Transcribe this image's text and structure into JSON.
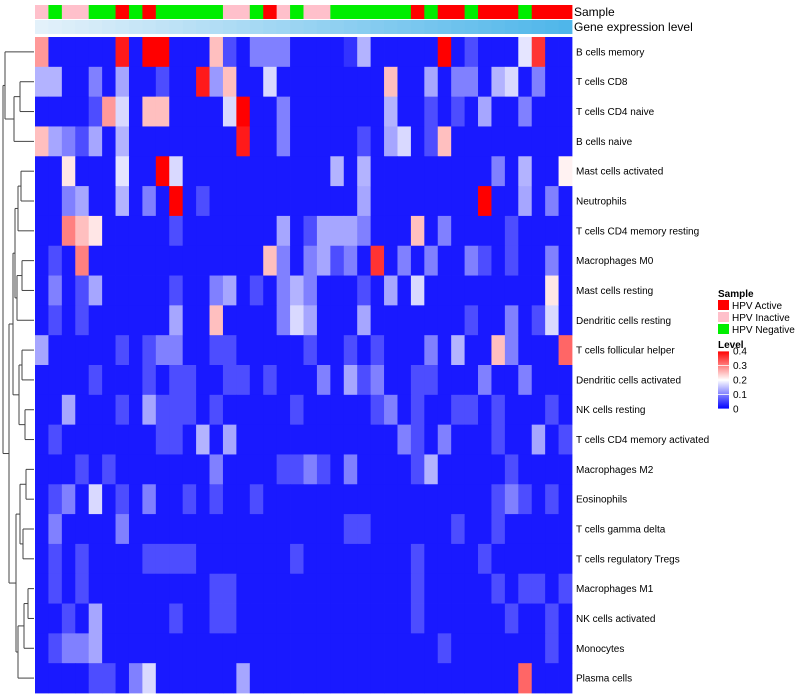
{
  "chart_data": {
    "type": "heatmap",
    "annotation_tracks": [
      "Sample",
      "Gene expression level"
    ],
    "sample_annotation": [
      "HPV Inactive",
      "HPV Negative",
      "HPV Inactive",
      "HPV Inactive",
      "HPV Negative",
      "HPV Negative",
      "HPV Active",
      "HPV Negative",
      "HPV Active",
      "HPV Negative",
      "HPV Negative",
      "HPV Negative",
      "HPV Negative",
      "HPV Negative",
      "HPV Inactive",
      "HPV Inactive",
      "HPV Negative",
      "HPV Active",
      "HPV Inactive",
      "HPV Negative",
      "HPV Inactive",
      "HPV Inactive",
      "HPV Negative",
      "HPV Negative",
      "HPV Negative",
      "HPV Negative",
      "HPV Negative",
      "HPV Negative",
      "HPV Active",
      "HPV Negative",
      "HPV Active",
      "HPV Active",
      "HPV Negative",
      "HPV Active",
      "HPV Active",
      "HPV Active",
      "HPV Negative",
      "HPV Active",
      "HPV Active",
      "HPV Active"
    ],
    "gene_expression_level_scale": [
      "#e3f1fa",
      "#4fb6ea"
    ],
    "rows": [
      "B cells memory",
      "T cells CD8",
      "T cells CD4 naive",
      "B cells naive",
      "Mast cells activated",
      "Neutrophils",
      "T cells CD4 memory resting",
      "Macrophages M0",
      "Mast cells resting",
      "Dendritic cells resting",
      "T cells follicular helper",
      "Dendritic cells activated",
      "NK cells resting",
      "T cells CD4 memory activated",
      "Macrophages M2",
      "Eosinophils",
      "T cells gamma delta",
      "T cells regulatory  Tregs",
      "Macrophages M1",
      "NK cells activated",
      "Monocytes",
      "Plasma cells"
    ],
    "values": [
      [
        0.28,
        0.02,
        0.02,
        0.02,
        0.02,
        0.02,
        0.38,
        0.02,
        0.4,
        0.4,
        0.02,
        0.02,
        0.02,
        0.25,
        0.06,
        0.02,
        0.1,
        0.1,
        0.1,
        0.02,
        0.02,
        0.02,
        0.02,
        0.04,
        0.14,
        0.02,
        0.02,
        0.02,
        0.02,
        0.02,
        0.4,
        0.02,
        0.06,
        0.02,
        0.02,
        0.02,
        0.18,
        0.36,
        0.02,
        0.02
      ],
      [
        0.14,
        0.14,
        0.02,
        0.02,
        0.1,
        0.02,
        0.13,
        0.02,
        0.02,
        0.06,
        0.02,
        0.02,
        0.38,
        0.12,
        0.25,
        0.02,
        0.02,
        0.17,
        0.02,
        0.02,
        0.02,
        0.02,
        0.02,
        0.02,
        0.02,
        0.02,
        0.25,
        0.02,
        0.02,
        0.13,
        0.02,
        0.1,
        0.1,
        0.02,
        0.14,
        0.17,
        0.02,
        0.1,
        0.02,
        0.02
      ],
      [
        0.02,
        0.02,
        0.02,
        0.02,
        0.06,
        0.28,
        0.17,
        0.02,
        0.25,
        0.25,
        0.02,
        0.02,
        0.02,
        0.02,
        0.17,
        0.4,
        0.02,
        0.02,
        0.1,
        0.02,
        0.02,
        0.02,
        0.02,
        0.02,
        0.02,
        0.02,
        0.14,
        0.02,
        0.02,
        0.06,
        0.02,
        0.06,
        0.02,
        0.13,
        0.02,
        0.02,
        0.1,
        0.02,
        0.02,
        0.02
      ],
      [
        0.25,
        0.13,
        0.1,
        0.06,
        0.13,
        0.02,
        0.14,
        0.02,
        0.02,
        0.02,
        0.02,
        0.02,
        0.02,
        0.02,
        0.02,
        0.38,
        0.02,
        0.02,
        0.1,
        0.02,
        0.02,
        0.02,
        0.02,
        0.02,
        0.06,
        0.02,
        0.13,
        0.17,
        0.02,
        0.06,
        0.25,
        0.02,
        0.02,
        0.02,
        0.02,
        0.02,
        0.02,
        0.02,
        0.02,
        0.02
      ],
      [
        0.02,
        0.02,
        0.22,
        0.02,
        0.02,
        0.02,
        0.18,
        0.02,
        0.02,
        0.4,
        0.17,
        0.02,
        0.02,
        0.02,
        0.02,
        0.02,
        0.02,
        0.02,
        0.02,
        0.02,
        0.02,
        0.02,
        0.14,
        0.02,
        0.14,
        0.02,
        0.02,
        0.02,
        0.02,
        0.02,
        0.02,
        0.02,
        0.02,
        0.02,
        0.1,
        0.02,
        0.14,
        0.02,
        0.02,
        0.21
      ],
      [
        0.02,
        0.02,
        0.1,
        0.13,
        0.02,
        0.02,
        0.14,
        0.02,
        0.1,
        0.02,
        0.4,
        0.02,
        0.06,
        0.02,
        0.02,
        0.02,
        0.02,
        0.02,
        0.02,
        0.02,
        0.02,
        0.02,
        0.02,
        0.02,
        0.13,
        0.02,
        0.02,
        0.02,
        0.02,
        0.02,
        0.02,
        0.02,
        0.02,
        0.4,
        0.02,
        0.02,
        0.13,
        0.02,
        0.1,
        0.02
      ],
      [
        0.02,
        0.02,
        0.3,
        0.25,
        0.22,
        0.02,
        0.02,
        0.02,
        0.02,
        0.02,
        0.06,
        0.02,
        0.02,
        0.02,
        0.02,
        0.02,
        0.02,
        0.02,
        0.13,
        0.02,
        0.06,
        0.13,
        0.13,
        0.13,
        0.1,
        0.02,
        0.02,
        0.02,
        0.25,
        0.02,
        0.1,
        0.02,
        0.02,
        0.02,
        0.02,
        0.06,
        0.02,
        0.02,
        0.02,
        0.02
      ],
      [
        0.02,
        0.06,
        0.02,
        0.3,
        0.02,
        0.02,
        0.02,
        0.02,
        0.02,
        0.02,
        0.02,
        0.02,
        0.02,
        0.02,
        0.02,
        0.02,
        0.02,
        0.25,
        0.1,
        0.02,
        0.1,
        0.13,
        0.06,
        0.1,
        0.02,
        0.36,
        0.02,
        0.1,
        0.02,
        0.1,
        0.02,
        0.02,
        0.1,
        0.06,
        0.02,
        0.06,
        0.02,
        0.02,
        0.1,
        0.02
      ],
      [
        0.02,
        0.1,
        0.02,
        0.06,
        0.13,
        0.02,
        0.02,
        0.02,
        0.02,
        0.02,
        0.06,
        0.02,
        0.02,
        0.1,
        0.13,
        0.02,
        0.06,
        0.02,
        0.1,
        0.14,
        0.1,
        0.02,
        0.02,
        0.02,
        0.06,
        0.02,
        0.13,
        0.02,
        0.17,
        0.02,
        0.02,
        0.02,
        0.02,
        0.02,
        0.02,
        0.02,
        0.02,
        0.02,
        0.22,
        0.02
      ],
      [
        0.02,
        0.06,
        0.02,
        0.06,
        0.02,
        0.02,
        0.02,
        0.02,
        0.02,
        0.02,
        0.13,
        0.02,
        0.02,
        0.25,
        0.02,
        0.02,
        0.02,
        0.02,
        0.1,
        0.17,
        0.13,
        0.02,
        0.02,
        0.02,
        0.13,
        0.02,
        0.02,
        0.02,
        0.02,
        0.02,
        0.02,
        0.02,
        0.06,
        0.02,
        0.02,
        0.1,
        0.02,
        0.06,
        0.17,
        0.02
      ],
      [
        0.13,
        0.02,
        0.02,
        0.02,
        0.02,
        0.02,
        0.06,
        0.02,
        0.06,
        0.1,
        0.1,
        0.02,
        0.02,
        0.06,
        0.06,
        0.02,
        0.02,
        0.02,
        0.02,
        0.02,
        0.06,
        0.02,
        0.02,
        0.06,
        0.02,
        0.06,
        0.02,
        0.02,
        0.02,
        0.1,
        0.02,
        0.14,
        0.02,
        0.02,
        0.25,
        0.1,
        0.02,
        0.02,
        0.02,
        0.32
      ],
      [
        0.02,
        0.02,
        0.02,
        0.02,
        0.06,
        0.02,
        0.02,
        0.02,
        0.06,
        0.02,
        0.06,
        0.06,
        0.02,
        0.02,
        0.06,
        0.06,
        0.02,
        0.06,
        0.02,
        0.02,
        0.02,
        0.1,
        0.02,
        0.13,
        0.06,
        0.1,
        0.02,
        0.02,
        0.06,
        0.06,
        0.02,
        0.02,
        0.02,
        0.1,
        0.02,
        0.02,
        0.1,
        0.02,
        0.02,
        0.02
      ],
      [
        0.02,
        0.02,
        0.13,
        0.02,
        0.02,
        0.02,
        0.06,
        0.02,
        0.13,
        0.06,
        0.06,
        0.06,
        0.02,
        0.06,
        0.02,
        0.02,
        0.02,
        0.02,
        0.02,
        0.06,
        0.02,
        0.02,
        0.02,
        0.02,
        0.02,
        0.06,
        0.1,
        0.02,
        0.06,
        0.02,
        0.02,
        0.06,
        0.06,
        0.02,
        0.06,
        0.02,
        0.02,
        0.02,
        0.06,
        0.02
      ],
      [
        0.02,
        0.06,
        0.02,
        0.02,
        0.02,
        0.02,
        0.02,
        0.02,
        0.02,
        0.06,
        0.06,
        0.02,
        0.14,
        0.02,
        0.13,
        0.02,
        0.02,
        0.02,
        0.02,
        0.02,
        0.02,
        0.02,
        0.02,
        0.02,
        0.02,
        0.02,
        0.02,
        0.1,
        0.06,
        0.02,
        0.1,
        0.02,
        0.02,
        0.02,
        0.06,
        0.02,
        0.02,
        0.13,
        0.02,
        0.06
      ],
      [
        0.02,
        0.02,
        0.02,
        0.06,
        0.02,
        0.06,
        0.02,
        0.02,
        0.02,
        0.02,
        0.02,
        0.02,
        0.02,
        0.1,
        0.02,
        0.02,
        0.02,
        0.02,
        0.06,
        0.06,
        0.1,
        0.06,
        0.02,
        0.1,
        0.02,
        0.02,
        0.02,
        0.02,
        0.06,
        0.14,
        0.02,
        0.02,
        0.02,
        0.02,
        0.02,
        0.06,
        0.02,
        0.02,
        0.02,
        0.02
      ],
      [
        0.02,
        0.06,
        0.1,
        0.02,
        0.17,
        0.02,
        0.06,
        0.02,
        0.1,
        0.02,
        0.02,
        0.06,
        0.02,
        0.06,
        0.02,
        0.02,
        0.06,
        0.02,
        0.02,
        0.02,
        0.02,
        0.02,
        0.02,
        0.02,
        0.02,
        0.02,
        0.02,
        0.02,
        0.02,
        0.02,
        0.02,
        0.02,
        0.02,
        0.02,
        0.06,
        0.1,
        0.06,
        0.02,
        0.06,
        0.02
      ],
      [
        0.02,
        0.1,
        0.02,
        0.02,
        0.02,
        0.02,
        0.1,
        0.02,
        0.02,
        0.02,
        0.02,
        0.02,
        0.02,
        0.02,
        0.02,
        0.02,
        0.02,
        0.02,
        0.02,
        0.02,
        0.02,
        0.02,
        0.02,
        0.06,
        0.06,
        0.02,
        0.02,
        0.02,
        0.02,
        0.02,
        0.02,
        0.06,
        0.02,
        0.02,
        0.06,
        0.02,
        0.02,
        0.02,
        0.02,
        0.02
      ],
      [
        0.02,
        0.06,
        0.02,
        0.06,
        0.02,
        0.02,
        0.02,
        0.02,
        0.06,
        0.06,
        0.06,
        0.06,
        0.02,
        0.02,
        0.02,
        0.02,
        0.02,
        0.02,
        0.02,
        0.06,
        0.02,
        0.02,
        0.02,
        0.02,
        0.02,
        0.02,
        0.02,
        0.02,
        0.06,
        0.02,
        0.02,
        0.02,
        0.02,
        0.06,
        0.02,
        0.02,
        0.02,
        0.02,
        0.02,
        0.02
      ],
      [
        0.02,
        0.06,
        0.02,
        0.06,
        0.02,
        0.02,
        0.02,
        0.02,
        0.02,
        0.02,
        0.02,
        0.02,
        0.02,
        0.06,
        0.06,
        0.02,
        0.02,
        0.02,
        0.02,
        0.02,
        0.02,
        0.02,
        0.02,
        0.02,
        0.02,
        0.02,
        0.02,
        0.02,
        0.06,
        0.02,
        0.02,
        0.02,
        0.02,
        0.02,
        0.06,
        0.02,
        0.06,
        0.06,
        0.02,
        0.06
      ],
      [
        0.02,
        0.02,
        0.06,
        0.02,
        0.13,
        0.02,
        0.02,
        0.02,
        0.02,
        0.02,
        0.06,
        0.02,
        0.02,
        0.06,
        0.06,
        0.02,
        0.02,
        0.02,
        0.02,
        0.02,
        0.02,
        0.02,
        0.02,
        0.02,
        0.02,
        0.02,
        0.02,
        0.02,
        0.06,
        0.02,
        0.02,
        0.02,
        0.02,
        0.02,
        0.02,
        0.06,
        0.02,
        0.02,
        0.06,
        0.02
      ],
      [
        0.02,
        0.06,
        0.1,
        0.1,
        0.13,
        0.02,
        0.02,
        0.02,
        0.02,
        0.02,
        0.02,
        0.02,
        0.02,
        0.02,
        0.02,
        0.02,
        0.02,
        0.02,
        0.02,
        0.02,
        0.02,
        0.02,
        0.02,
        0.02,
        0.02,
        0.02,
        0.02,
        0.02,
        0.02,
        0.02,
        0.06,
        0.02,
        0.02,
        0.02,
        0.02,
        0.02,
        0.02,
        0.02,
        0.06,
        0.02
      ],
      [
        0.02,
        0.02,
        0.02,
        0.02,
        0.06,
        0.06,
        0.02,
        0.1,
        0.17,
        0.02,
        0.02,
        0.02,
        0.02,
        0.02,
        0.02,
        0.13,
        0.02,
        0.02,
        0.02,
        0.02,
        0.02,
        0.02,
        0.02,
        0.02,
        0.02,
        0.02,
        0.02,
        0.02,
        0.02,
        0.02,
        0.02,
        0.02,
        0.02,
        0.02,
        0.02,
        0.02,
        0.32,
        0.02,
        0.02,
        0.02
      ]
    ],
    "legend_sample": {
      "title": "Sample",
      "entries": [
        {
          "label": "HPV Active",
          "color": "#ff0000"
        },
        {
          "label": "HPV Inactive",
          "color": "#ffc0cb"
        },
        {
          "label": "HPV Negative",
          "color": "#00ee00"
        }
      ]
    },
    "legend_level": {
      "title": "Level",
      "range": [
        0,
        0.4
      ],
      "ticks": [
        {
          "value": 0.4,
          "label": "0.4"
        },
        {
          "value": 0.3,
          "label": "0.3"
        },
        {
          "value": 0.2,
          "label": "0.2"
        },
        {
          "value": 0.1,
          "label": "0.1"
        },
        {
          "value": 0,
          "label": "0"
        }
      ],
      "colors": [
        "#0000ff",
        "#ffffff",
        "#ff0000"
      ]
    },
    "dendrogram_merge_order": [
      "T cells CD8",
      "T cells CD4 naive",
      "B cells naive",
      "B cells memory"
    ]
  }
}
